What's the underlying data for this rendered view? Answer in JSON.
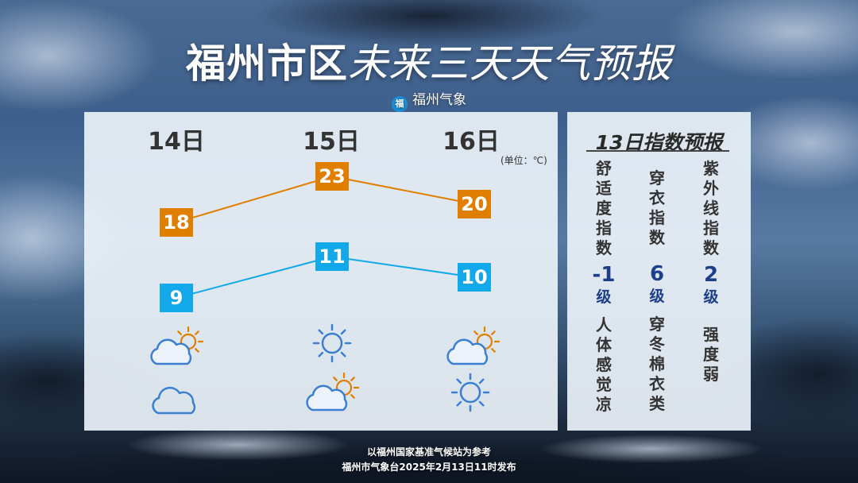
{
  "title": {
    "bold": "福州市区",
    "light": "未来三天天气预报"
  },
  "brand": {
    "logo_char": "福",
    "name": "福州气象"
  },
  "chart_data": {
    "type": "line",
    "categories": [
      "14日",
      "15日",
      "16日"
    ],
    "series": [
      {
        "values": [
          18,
          23,
          20
        ],
        "color": "#e07e00"
      },
      {
        "values": [
          9,
          11,
          10
        ],
        "color": "#12a8ea"
      }
    ],
    "unit_label": "(单位：℃)"
  },
  "weather_icons": {
    "day": [
      "partly-cloudy-icon",
      "sunny-icon",
      "partly-cloudy-icon"
    ],
    "night": [
      "cloudy-icon",
      "partly-cloudy-icon",
      "sunny-icon"
    ]
  },
  "index": {
    "title": "13日指数预报",
    "columns": [
      {
        "name": "舒适度指数",
        "value": "-1",
        "level": "级",
        "desc": "人体感觉凉"
      },
      {
        "name": "穿衣指数",
        "value": "6",
        "level": "级",
        "desc": "穿冬棉衣类"
      },
      {
        "name": "紫外线指数",
        "value": "2",
        "level": "级",
        "desc": "强度弱"
      }
    ]
  },
  "footer": {
    "line1": "以福州国家基准气候站为参考",
    "line2": "福州市气象台2025年2月13日11时发布"
  }
}
